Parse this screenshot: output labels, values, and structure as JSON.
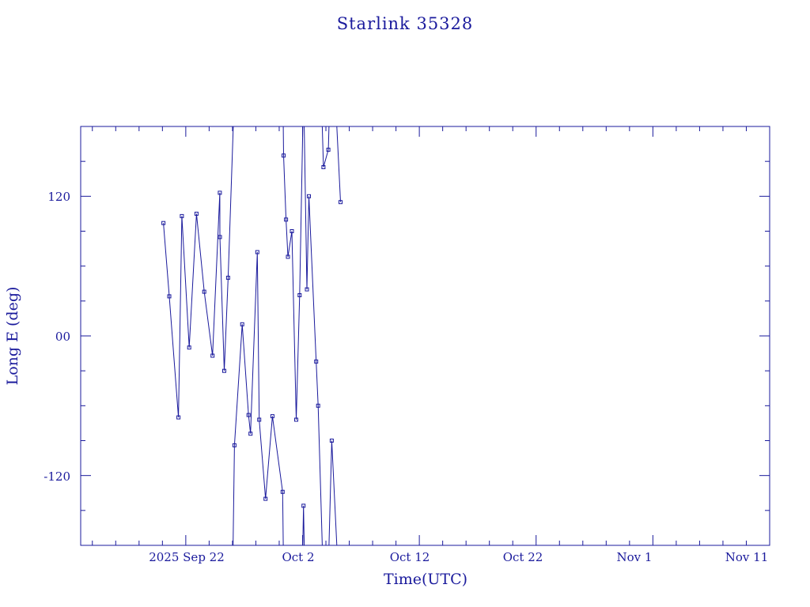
{
  "chart_data": {
    "type": "line",
    "title": "Starlink 35328",
    "xlabel": "Time(UTC)",
    "ylabel": "Long E (deg)",
    "x_ticks": [
      "2025 Sep 22",
      "Oct  2",
      "Oct 12",
      "Oct 22",
      "Nov  1",
      "Nov 11"
    ],
    "y_ticks": [
      "120",
      "00",
      "-120"
    ],
    "y_tick_values": [
      120,
      0,
      -120
    ],
    "xlim": [
      "2025-09-13",
      "2025-11-11"
    ],
    "ylim": [
      -180,
      180
    ],
    "grid": false,
    "line_color": "#1a1a9c",
    "marker": "square",
    "wrap": [
      -180,
      180
    ],
    "series": [
      {
        "values": [
          [
            "2025-09-20T02:00",
            97
          ],
          [
            "2025-09-20T14:00",
            34
          ],
          [
            "2025-09-21T09:00",
            -70
          ],
          [
            "2025-09-21T16:00",
            103
          ],
          [
            "2025-09-22T07:00",
            -10
          ],
          [
            "2025-09-22T22:00",
            105
          ],
          [
            "2025-09-23T14:00",
            38
          ],
          [
            "2025-09-24T07:00",
            -17
          ],
          [
            "2025-09-24T22:00",
            123
          ],
          [
            "2025-09-24T22:10",
            85
          ],
          [
            "2025-09-25T07:00",
            -30
          ],
          [
            "2025-09-25T15:00",
            50
          ],
          [
            "2025-09-26T01:00",
            -188
          ],
          [
            "2025-09-26T04:00",
            -94
          ],
          [
            "2025-09-26T20:00",
            10
          ],
          [
            "2025-09-27T09:00",
            -68
          ],
          [
            "2025-09-27T13:00",
            -84
          ],
          [
            "2025-09-28T03:00",
            72
          ],
          [
            "2025-09-28T07:00",
            -72
          ],
          [
            "2025-09-28T20:00",
            -140
          ],
          [
            "2025-09-29T10:00",
            -69
          ],
          [
            "2025-09-30T07:00",
            -134
          ],
          [
            "2025-09-30T09:00",
            155
          ],
          [
            "2025-09-30T14:00",
            100
          ],
          [
            "2025-09-30T18:00",
            68
          ],
          [
            "2025-10-01T02:00",
            90
          ],
          [
            "2025-10-01T11:00",
            -72
          ],
          [
            "2025-10-01T18:00",
            35
          ],
          [
            "2025-10-02T02:00",
            -146
          ],
          [
            "2025-10-02T09:00",
            40
          ],
          [
            "2025-10-02T13:00",
            120
          ],
          [
            "2025-10-03T04:00",
            -22
          ],
          [
            "2025-10-03T08:00",
            -60
          ],
          [
            "2025-10-03T19:00",
            145
          ],
          [
            "2025-10-04T05:00",
            160
          ],
          [
            "2025-10-04T12:00",
            -90
          ],
          [
            "2025-10-05T06:00",
            115
          ]
        ]
      }
    ]
  }
}
